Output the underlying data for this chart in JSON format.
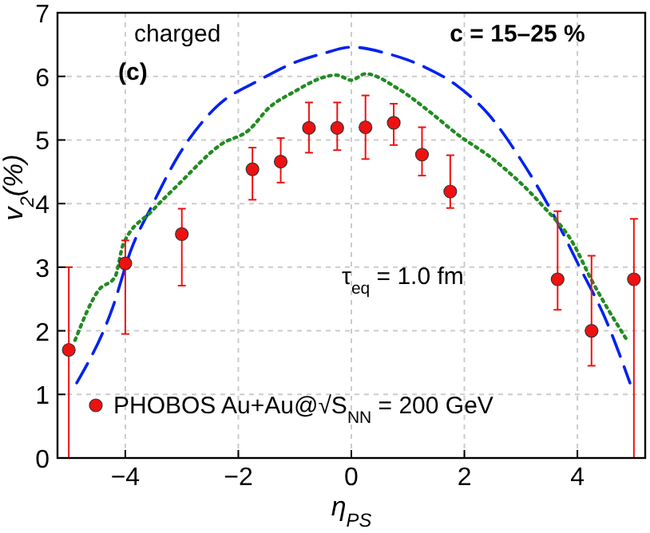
{
  "chart_data": {
    "type": "scatter",
    "xlabel": "η$_{PS}$",
    "ylabel": "v$_{2}$(%)",
    "xlim": [
      -5.2,
      5.2
    ],
    "ylim": [
      0,
      7
    ],
    "xticks": [
      -4,
      -2,
      0,
      2,
      4
    ],
    "yticks": [
      0,
      1,
      2,
      3,
      4,
      5,
      6,
      7
    ],
    "grid": true,
    "legend": "bottom",
    "annotations": [
      "charged",
      "(c)",
      "c = 15–25 %",
      "τ$_{eq}$ = 1.0 fm"
    ],
    "series": [
      {
        "type": "line",
        "color": "#0022ee",
        "line_style": "dashed",
        "x": [
          -4.86,
          -4.23,
          -3.9,
          -3.52,
          -3.05,
          -2.39,
          -1.63,
          -0.97,
          -0.5,
          0,
          0.63,
          1.29,
          1.86,
          2.43,
          3.0,
          3.56,
          4.03,
          4.5,
          4.93
        ],
        "values": [
          1.18,
          2.35,
          3.27,
          3.98,
          4.77,
          5.52,
          5.94,
          6.23,
          6.36,
          6.46,
          6.36,
          6.15,
          5.86,
          5.4,
          4.69,
          3.85,
          3.02,
          2.18,
          1.18
        ]
      },
      {
        "type": "line",
        "color": "#228b22",
        "line_style": "dotted",
        "x": [
          -4.89,
          -4.47,
          -4.18,
          -4.04,
          -3.52,
          -3.05,
          -2.29,
          -1.82,
          -1.44,
          -1.07,
          -0.26,
          0,
          0.25,
          0.82,
          1.39,
          1.86,
          2.52,
          3.37,
          3.94,
          4.22,
          4.88
        ],
        "values": [
          1.85,
          2.64,
          2.85,
          3.35,
          3.89,
          4.31,
          4.94,
          5.15,
          5.52,
          5.73,
          6.02,
          5.94,
          6.04,
          5.81,
          5.44,
          5.1,
          4.69,
          3.98,
          3.35,
          2.85,
          1.85
        ]
      },
      {
        "name": "PHOBOS Au+Au@√S$_{NN}$ = 200 GeV",
        "color": "#ee1111",
        "marker": "circle",
        "x": [
          -5.0,
          -4.0,
          -3.0,
          -1.75,
          -1.25,
          -0.75,
          -0.25,
          0.25,
          0.75,
          1.25,
          1.75,
          3.65,
          4.25,
          5.0
        ],
        "values": [
          1.7,
          3.06,
          3.52,
          4.54,
          4.66,
          5.19,
          5.19,
          5.2,
          5.27,
          4.77,
          4.19,
          2.81,
          2.0,
          2.81
        ],
        "errors": [
          [
            0,
            3.0
          ],
          [
            1.95,
            3.42
          ],
          [
            2.71,
            3.92
          ],
          [
            4.06,
            4.88
          ],
          [
            4.33,
            5.03
          ],
          [
            4.8,
            5.59
          ],
          [
            4.84,
            5.59
          ],
          [
            4.7,
            5.7
          ],
          [
            4.92,
            5.57
          ],
          [
            4.44,
            5.2
          ],
          [
            3.93,
            4.76
          ],
          [
            2.33,
            3.88
          ],
          [
            1.45,
            3.18
          ],
          [
            0,
            3.76
          ]
        ]
      }
    ]
  }
}
